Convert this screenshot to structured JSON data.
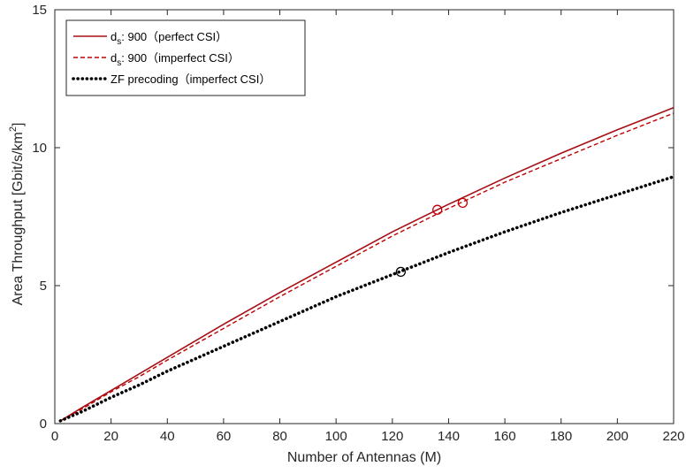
{
  "chart_data": {
    "type": "line",
    "xlabel": "Number of Antennas (M)",
    "ylabel": "Area Throughput [Gbit/s/km",
    "ylabel_sup": "2",
    "ylabel_end": "]",
    "xlim": [
      0,
      220
    ],
    "ylim": [
      0,
      15
    ],
    "xticks": [
      0,
      20,
      40,
      60,
      80,
      100,
      120,
      140,
      160,
      180,
      200,
      220
    ],
    "yticks": [
      0,
      5,
      10,
      15
    ],
    "grid": false,
    "legend_position": "top-left",
    "series": [
      {
        "name": "d_s: 900 (perfect CSI)",
        "legend": {
          "prefix": "d",
          "sub": "s",
          "suffix": ": 900（perfect CSI）"
        },
        "color": "#a50f15",
        "style": "solid",
        "x": [
          2,
          10,
          20,
          30,
          40,
          60,
          80,
          100,
          120,
          140,
          160,
          180,
          200,
          220
        ],
        "y": [
          0.1,
          0.6,
          1.2,
          1.8,
          2.4,
          3.6,
          4.75,
          5.85,
          6.95,
          7.95,
          8.9,
          9.8,
          10.65,
          11.45
        ]
      },
      {
        "name": "d_s: 900 (imperfect CSI)",
        "legend": {
          "prefix": "d",
          "sub": "s",
          "suffix": ": 900（imperfect CSI）"
        },
        "color": "#c00000",
        "style": "dashed",
        "x": [
          2,
          10,
          20,
          30,
          40,
          60,
          80,
          100,
          120,
          140,
          160,
          180,
          200,
          220
        ],
        "y": [
          0.1,
          0.55,
          1.15,
          1.7,
          2.3,
          3.45,
          4.6,
          5.7,
          6.8,
          7.8,
          8.75,
          9.6,
          10.45,
          11.25
        ]
      },
      {
        "name": "ZF precoding (imperfect CSI)",
        "legend": {
          "prefix": "ZF precoding（imperfect CSI）",
          "sub": "",
          "suffix": ""
        },
        "color": "#000000",
        "style": "dotted",
        "x": [
          2,
          10,
          20,
          30,
          40,
          60,
          80,
          100,
          120,
          140,
          160,
          180,
          200,
          220
        ],
        "y": [
          0.1,
          0.45,
          0.95,
          1.4,
          1.9,
          2.8,
          3.7,
          4.6,
          5.4,
          6.2,
          6.95,
          7.65,
          8.3,
          8.95
        ]
      }
    ],
    "markers": [
      {
        "series": 0,
        "x": 136,
        "y": 7.75,
        "shape": "circle",
        "color": "#c00000"
      },
      {
        "series": 1,
        "x": 145,
        "y": 8.0,
        "shape": "circle",
        "color": "#c00000"
      },
      {
        "series": 2,
        "x": 123,
        "y": 5.5,
        "shape": "circle",
        "color": "#000000"
      }
    ]
  }
}
